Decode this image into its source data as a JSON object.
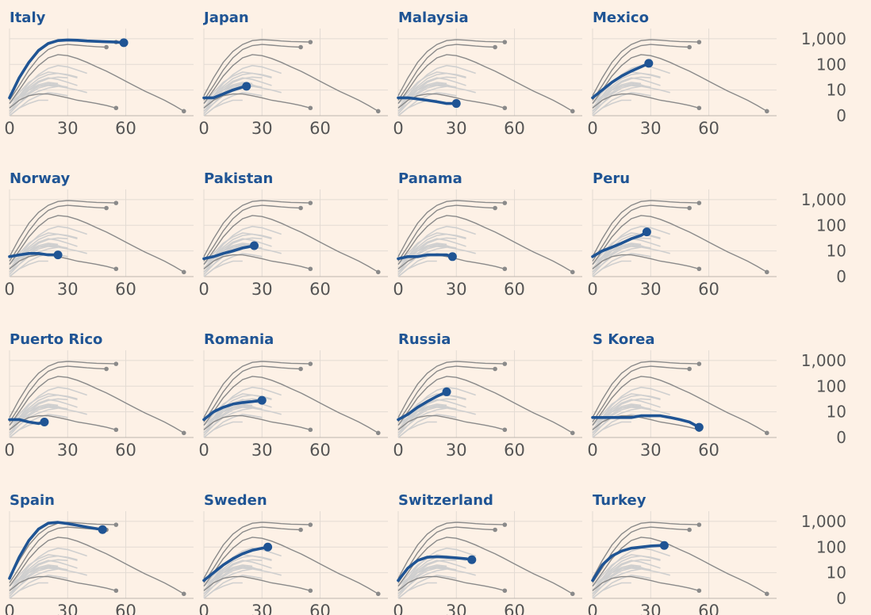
{
  "colors": {
    "background": "#fdf1e6",
    "highlight": "#1f5494",
    "title": "#1f5494",
    "reference_dark": "#8a8a8a",
    "reference_light": "#cfcfcf",
    "grid": "#e3dbd3",
    "axis_text": "#555555"
  },
  "chart_data": {
    "type": "line",
    "layout": "small-multiples",
    "rows": 4,
    "columns": 4,
    "x_ticks": [
      0,
      30,
      60
    ],
    "xlim": [
      0,
      95
    ],
    "y_scale": "log",
    "y_ticks": [
      {
        "value": 1,
        "label": "0"
      },
      {
        "value": 10,
        "label": "10"
      },
      {
        "value": 100,
        "label": "100"
      },
      {
        "value": 1000,
        "label": "1,000"
      }
    ],
    "ylim": [
      1,
      2500
    ],
    "reference_dark": [
      {
        "x": [
          0,
          5,
          10,
          15,
          20,
          25,
          30,
          35,
          40,
          45,
          50,
          55
        ],
        "y": [
          6,
          30,
          120,
          320,
          600,
          850,
          920,
          880,
          820,
          780,
          760,
          740
        ]
      },
      {
        "x": [
          0,
          5,
          10,
          15,
          20,
          25,
          30,
          35,
          40,
          45,
          50
        ],
        "y": [
          4,
          15,
          60,
          180,
          380,
          540,
          600,
          560,
          520,
          490,
          470
        ]
      },
      {
        "x": [
          0,
          5,
          10,
          15,
          20,
          25,
          30,
          35,
          40,
          45,
          50,
          55,
          60,
          65,
          70,
          75,
          80,
          85,
          90
        ],
        "y": [
          3,
          10,
          35,
          90,
          180,
          240,
          220,
          170,
          120,
          80,
          55,
          35,
          22,
          14,
          9,
          6,
          4,
          2.5,
          1.5
        ]
      },
      {
        "x": [
          0,
          5,
          10,
          15,
          20,
          25,
          30,
          35,
          40,
          45,
          50,
          55
        ],
        "y": [
          2,
          4,
          6,
          7,
          7,
          6,
          5,
          4,
          3.5,
          3,
          2.5,
          2
        ]
      }
    ],
    "reference_light": [
      {
        "x": [
          0,
          5,
          10,
          15,
          20,
          25,
          30,
          35,
          40
        ],
        "y": [
          2,
          6,
          18,
          40,
          70,
          90,
          80,
          60,
          45
        ]
      },
      {
        "x": [
          0,
          5,
          10,
          15,
          20,
          25,
          30,
          35
        ],
        "y": [
          3,
          8,
          20,
          35,
          50,
          45,
          38,
          30
        ]
      },
      {
        "x": [
          0,
          5,
          10,
          15,
          20,
          25,
          30
        ],
        "y": [
          1.5,
          4,
          10,
          20,
          28,
          32,
          30
        ]
      },
      {
        "x": [
          0,
          5,
          10,
          15,
          20,
          25,
          30,
          35
        ],
        "y": [
          2,
          5,
          12,
          22,
          30,
          26,
          20,
          15
        ]
      },
      {
        "x": [
          0,
          5,
          10,
          15,
          20,
          25
        ],
        "y": [
          1.2,
          3,
          7,
          12,
          15,
          14
        ]
      },
      {
        "x": [
          0,
          5,
          10,
          15,
          20,
          25,
          30
        ],
        "y": [
          2,
          4,
          8,
          14,
          18,
          16,
          12
        ]
      },
      {
        "x": [
          0,
          5,
          10,
          15,
          20,
          25,
          30,
          35,
          40
        ],
        "y": [
          1.5,
          3,
          6,
          9,
          12,
          14,
          12,
          10,
          8
        ]
      },
      {
        "x": [
          0,
          5,
          10,
          15,
          20,
          25,
          30
        ],
        "y": [
          1,
          2,
          4,
          6,
          8,
          7,
          6
        ]
      },
      {
        "x": [
          0,
          5,
          10,
          15,
          20,
          25,
          30,
          35
        ],
        "y": [
          2,
          6,
          14,
          28,
          40,
          45,
          40,
          32
        ]
      },
      {
        "x": [
          0,
          5,
          10,
          15,
          20
        ],
        "y": [
          1,
          2,
          3,
          4,
          4
        ]
      },
      {
        "x": [
          0,
          5,
          10,
          15,
          20,
          25
        ],
        "y": [
          2,
          5,
          10,
          16,
          20,
          18
        ]
      },
      {
        "x": [
          0,
          5,
          10,
          15,
          20,
          25,
          30
        ],
        "y": [
          3,
          6,
          10,
          14,
          16,
          15,
          13
        ]
      }
    ],
    "panels": [
      {
        "country": "Italy",
        "x": [
          0,
          5,
          10,
          15,
          20,
          25,
          30,
          35,
          40,
          45,
          50,
          55,
          59
        ],
        "y": [
          5,
          30,
          120,
          350,
          650,
          850,
          900,
          870,
          820,
          790,
          760,
          740,
          700
        ]
      },
      {
        "country": "Japan",
        "x": [
          0,
          5,
          10,
          15,
          20,
          22
        ],
        "y": [
          5,
          5,
          7,
          10,
          13,
          14
        ]
      },
      {
        "country": "Malaysia",
        "x": [
          0,
          5,
          10,
          15,
          20,
          25,
          30
        ],
        "y": [
          5,
          5,
          4.5,
          4,
          3.5,
          3,
          3
        ]
      },
      {
        "country": "Mexico",
        "x": [
          0,
          5,
          10,
          15,
          20,
          25,
          29
        ],
        "y": [
          5,
          10,
          20,
          35,
          55,
          80,
          110
        ]
      },
      {
        "country": "Norway",
        "x": [
          0,
          5,
          10,
          15,
          20,
          25
        ],
        "y": [
          6,
          7,
          8,
          8,
          7,
          7
        ]
      },
      {
        "country": "Pakistan",
        "x": [
          0,
          5,
          10,
          15,
          20,
          26
        ],
        "y": [
          5,
          6,
          8,
          10,
          13,
          16
        ]
      },
      {
        "country": "Panama",
        "x": [
          0,
          5,
          10,
          15,
          20,
          25,
          28
        ],
        "y": [
          5,
          6,
          6,
          7,
          7,
          7,
          6
        ]
      },
      {
        "country": "Peru",
        "x": [
          0,
          5,
          10,
          15,
          20,
          25,
          28
        ],
        "y": [
          6,
          10,
          14,
          20,
          30,
          40,
          55
        ]
      },
      {
        "country": "Puerto Rico",
        "x": [
          0,
          5,
          10,
          15,
          18
        ],
        "y": [
          5,
          5,
          4,
          3.5,
          4
        ]
      },
      {
        "country": "Romania",
        "x": [
          0,
          5,
          10,
          15,
          20,
          25,
          30
        ],
        "y": [
          5,
          10,
          15,
          20,
          23,
          25,
          28
        ]
      },
      {
        "country": "Russia",
        "x": [
          0,
          5,
          10,
          15,
          20,
          25
        ],
        "y": [
          5,
          8,
          15,
          25,
          40,
          60
        ]
      },
      {
        "country": "S Korea",
        "x": [
          0,
          5,
          10,
          15,
          20,
          25,
          30,
          35,
          40,
          45,
          50,
          55
        ],
        "y": [
          6,
          6,
          6,
          6,
          6,
          7,
          7,
          7,
          6,
          5,
          4,
          2.5
        ]
      },
      {
        "country": "Spain",
        "x": [
          0,
          5,
          10,
          15,
          20,
          25,
          30,
          35,
          40,
          45,
          48
        ],
        "y": [
          6,
          40,
          180,
          500,
          850,
          920,
          820,
          700,
          600,
          520,
          480
        ]
      },
      {
        "country": "Sweden",
        "x": [
          0,
          5,
          10,
          15,
          20,
          25,
          30,
          33
        ],
        "y": [
          5,
          10,
          20,
          35,
          55,
          75,
          90,
          100
        ]
      },
      {
        "country": "Switzerland",
        "x": [
          0,
          5,
          10,
          15,
          20,
          25,
          30,
          35,
          38
        ],
        "y": [
          5,
          15,
          30,
          40,
          42,
          40,
          38,
          35,
          32
        ]
      },
      {
        "country": "Turkey",
        "x": [
          0,
          5,
          10,
          15,
          20,
          25,
          30,
          35,
          37
        ],
        "y": [
          5,
          20,
          45,
          70,
          90,
          100,
          110,
          115,
          115
        ]
      }
    ]
  }
}
